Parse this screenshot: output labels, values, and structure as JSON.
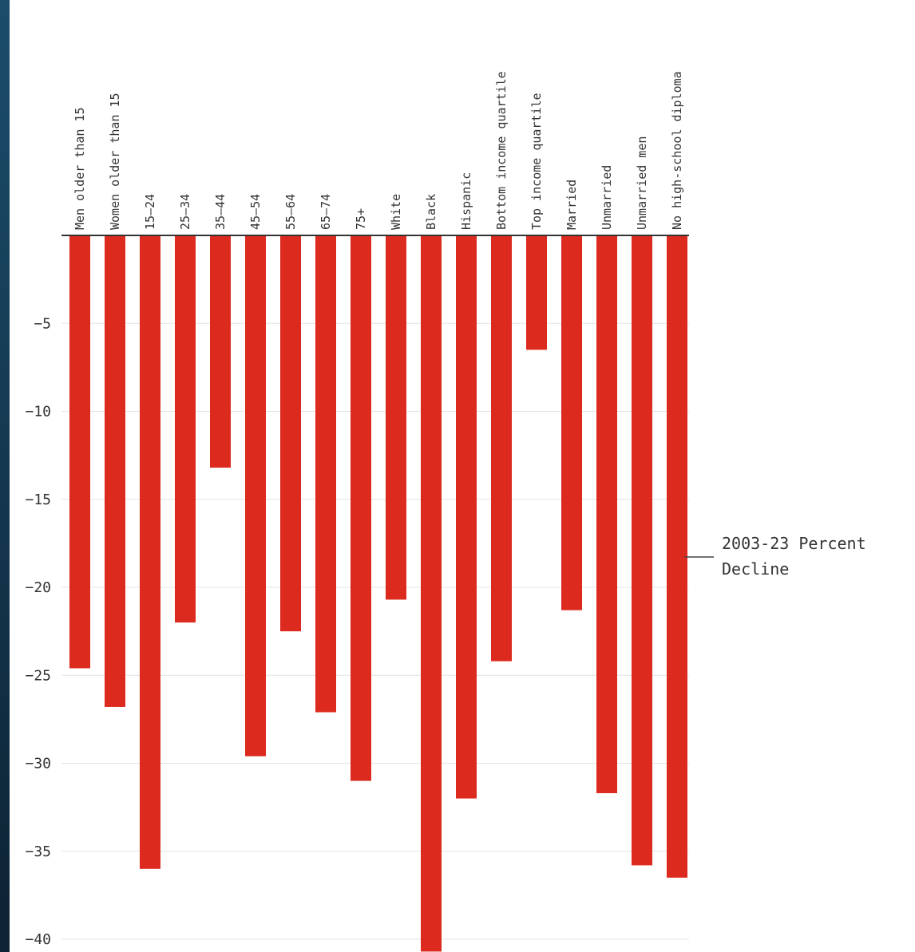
{
  "page": {
    "edge_color_top": "#1b4d6b",
    "edge_color_bottom": "#0d2233"
  },
  "chart_data": {
    "type": "bar",
    "orientation": "vertical-down",
    "categories": [
      "Men older than 15",
      "Women older than 15",
      "15–24",
      "25–34",
      "35–44",
      "45–54",
      "55–64",
      "65–74",
      "75+",
      "White",
      "Black",
      "Hispanic",
      "Bottom income quartile",
      "Top income quartile",
      "Married",
      "Unmarried",
      "Unmarried men",
      "No high-school diploma"
    ],
    "values": [
      -24.6,
      -26.8,
      -36.0,
      -22.0,
      -13.2,
      -29.6,
      -22.5,
      -27.1,
      -31.0,
      -20.7,
      -40.7,
      -32.0,
      -24.2,
      -6.5,
      -21.3,
      -31.7,
      -35.8,
      -36.5
    ],
    "ylim": [
      -40.7,
      0
    ],
    "yticks": [
      -5,
      -10,
      -15,
      -20,
      -25,
      -30,
      -35,
      -40
    ],
    "grid": true,
    "bar_color": "#dc2a1e",
    "annotation": {
      "lines": [
        "2003-23 Percent",
        "Decline"
      ]
    }
  }
}
